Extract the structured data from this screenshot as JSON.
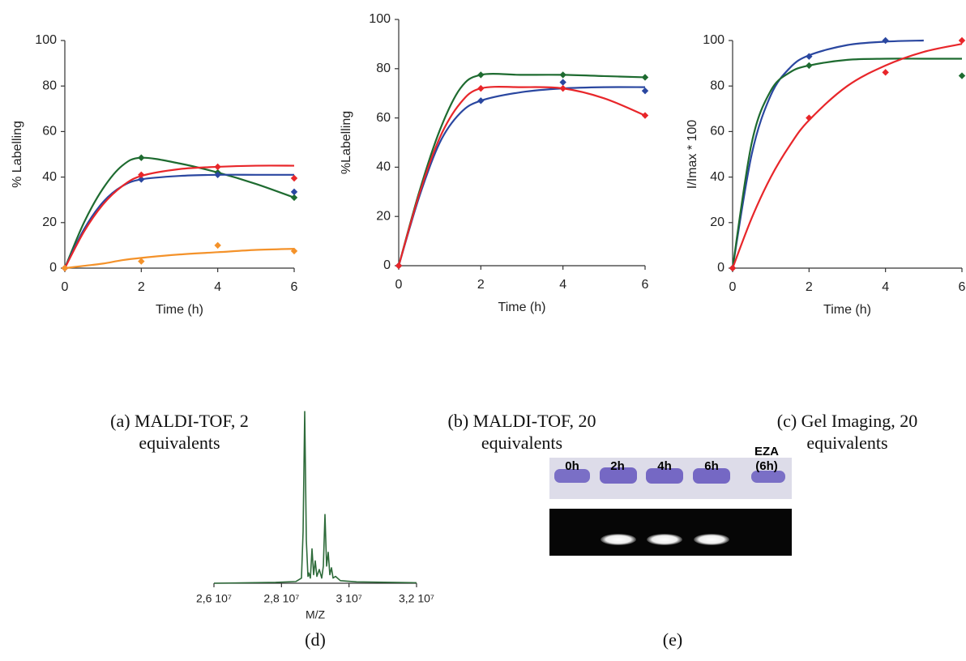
{
  "chart_data": [
    {
      "type": "scatter_fit",
      "caption": "(a) MALDI-TOF, 2 equivalents",
      "x_label": "Time (h)",
      "y_label": "% Labelling",
      "x": [
        0,
        2,
        4,
        6
      ],
      "fit_x": [
        0,
        0.5,
        1,
        1.5,
        2,
        3,
        4,
        5,
        6
      ],
      "xlim": [
        0,
        6
      ],
      "xticks": [
        0,
        2,
        4,
        6
      ],
      "ylim": [
        0,
        100
      ],
      "yticks": [
        0,
        20,
        40,
        60,
        80,
        100
      ],
      "series": [
        {
          "color": "#1e6b30",
          "values": [
            0,
            48.5,
            42,
            31
          ],
          "fit": [
            0,
            20,
            35,
            45,
            48.5,
            46,
            42,
            37,
            31
          ]
        },
        {
          "color": "#2a47a0",
          "values": [
            0,
            39,
            41,
            33.5
          ],
          "fit": [
            0,
            17,
            29,
            36,
            39,
            40.5,
            41,
            41,
            41
          ]
        },
        {
          "color": "#e8262a",
          "values": [
            0,
            41,
            44.5,
            39.5
          ],
          "fit": [
            0,
            16,
            28,
            36,
            40.5,
            43.5,
            44.5,
            45,
            45
          ]
        },
        {
          "color": "#f4922a",
          "values": [
            0,
            3,
            10,
            7.5
          ],
          "fit": [
            0,
            1,
            2,
            3.5,
            4.5,
            6,
            7,
            8,
            8.5
          ]
        }
      ]
    },
    {
      "type": "scatter_fit",
      "caption": "(b) MALDI-TOF, 20 equivalents",
      "x_label": "Time (h)",
      "y_label": "%Labelling",
      "x": [
        0,
        2,
        4,
        6
      ],
      "fit_x": [
        0,
        0.5,
        1,
        1.5,
        2,
        3,
        4,
        5,
        6
      ],
      "xlim": [
        0,
        6
      ],
      "xticks": [
        0,
        2,
        4,
        6
      ],
      "ylim": [
        0,
        100
      ],
      "yticks": [
        0,
        20,
        40,
        60,
        80,
        100
      ],
      "series": [
        {
          "color": "#1e6b30",
          "values": [
            0,
            77.5,
            77.5,
            76.5
          ],
          "fit": [
            0,
            30,
            55,
            72,
            77.5,
            77.5,
            77.5,
            77,
            76.5
          ]
        },
        {
          "color": "#2a47a0",
          "values": [
            0,
            67,
            74.5,
            71
          ],
          "fit": [
            0,
            28,
            50,
            62,
            67,
            70.5,
            72,
            72.5,
            72.5
          ]
        },
        {
          "color": "#e8262a",
          "values": [
            0,
            72,
            72,
            61
          ],
          "fit": [
            0,
            29,
            52,
            66,
            72,
            72.5,
            72,
            68,
            61
          ]
        }
      ]
    },
    {
      "type": "scatter_fit",
      "caption": "(c) Gel Imaging, 20 equivalents",
      "x_label": "Time (h)",
      "y_label": "I/Imax * 100",
      "x": [
        0,
        2,
        4,
        6
      ],
      "fit_x": [
        0,
        0.5,
        1,
        1.5,
        2,
        3,
        4,
        5,
        6
      ],
      "xlim": [
        0,
        6
      ],
      "xticks": [
        0,
        2,
        4,
        6
      ],
      "ylim": [
        0,
        100
      ],
      "yticks": [
        0,
        20,
        40,
        60,
        80,
        100
      ],
      "series": [
        {
          "color": "#2a47a0",
          "values": [
            0,
            93,
            100,
            null
          ],
          "fit": [
            0,
            50,
            76,
            88,
            93.5,
            98,
            99.5,
            100,
            null
          ]
        },
        {
          "color": "#1e6b30",
          "values": [
            0,
            89,
            null,
            84.5
          ],
          "fit": [
            0,
            55,
            78,
            86,
            89,
            91.5,
            92,
            92,
            92
          ]
        },
        {
          "color": "#e8262a",
          "values": [
            0,
            66,
            86,
            100
          ],
          "fit": [
            0,
            22,
            40,
            54,
            65,
            80,
            89,
            95,
            98.5
          ]
        }
      ]
    },
    {
      "type": "line",
      "caption": "(d)",
      "x_label": "M/Z",
      "x": [
        26000000,
        27824000,
        28424000,
        28592000,
        28640000,
        28688000,
        28736000,
        28784000,
        28808000,
        28856000,
        28904000,
        28952000,
        29000000,
        29048000,
        29120000,
        29192000,
        29240000,
        29288000,
        29336000,
        29384000,
        29432000,
        29480000,
        29528000,
        29600000,
        29744000,
        30224000,
        32000000
      ],
      "xlim": [
        26000000,
        32000000
      ],
      "xticks": [
        {
          "value": 26000000,
          "label": "2,6 10⁷"
        },
        {
          "value": 28000000,
          "label": "2,8 10⁷"
        },
        {
          "value": 30000000,
          "label": "3 10⁷"
        },
        {
          "value": 32000000,
          "label": "3,2 10⁷"
        }
      ],
      "ylim": [
        0,
        100
      ],
      "series": [
        {
          "color": "#2e6b3a",
          "values": [
            0,
            0.5,
            1,
            3,
            30,
            100,
            25,
            4,
            6,
            3,
            20,
            5,
            13,
            4,
            8,
            3,
            10,
            40,
            10,
            18,
            5,
            9,
            3,
            4,
            1.5,
            0.8,
            0.3
          ]
        }
      ]
    }
  ],
  "gel": {
    "lanes": [
      "0h",
      "2h",
      "4h",
      "6h",
      "EZA (6h)"
    ],
    "caption": "(e)"
  }
}
